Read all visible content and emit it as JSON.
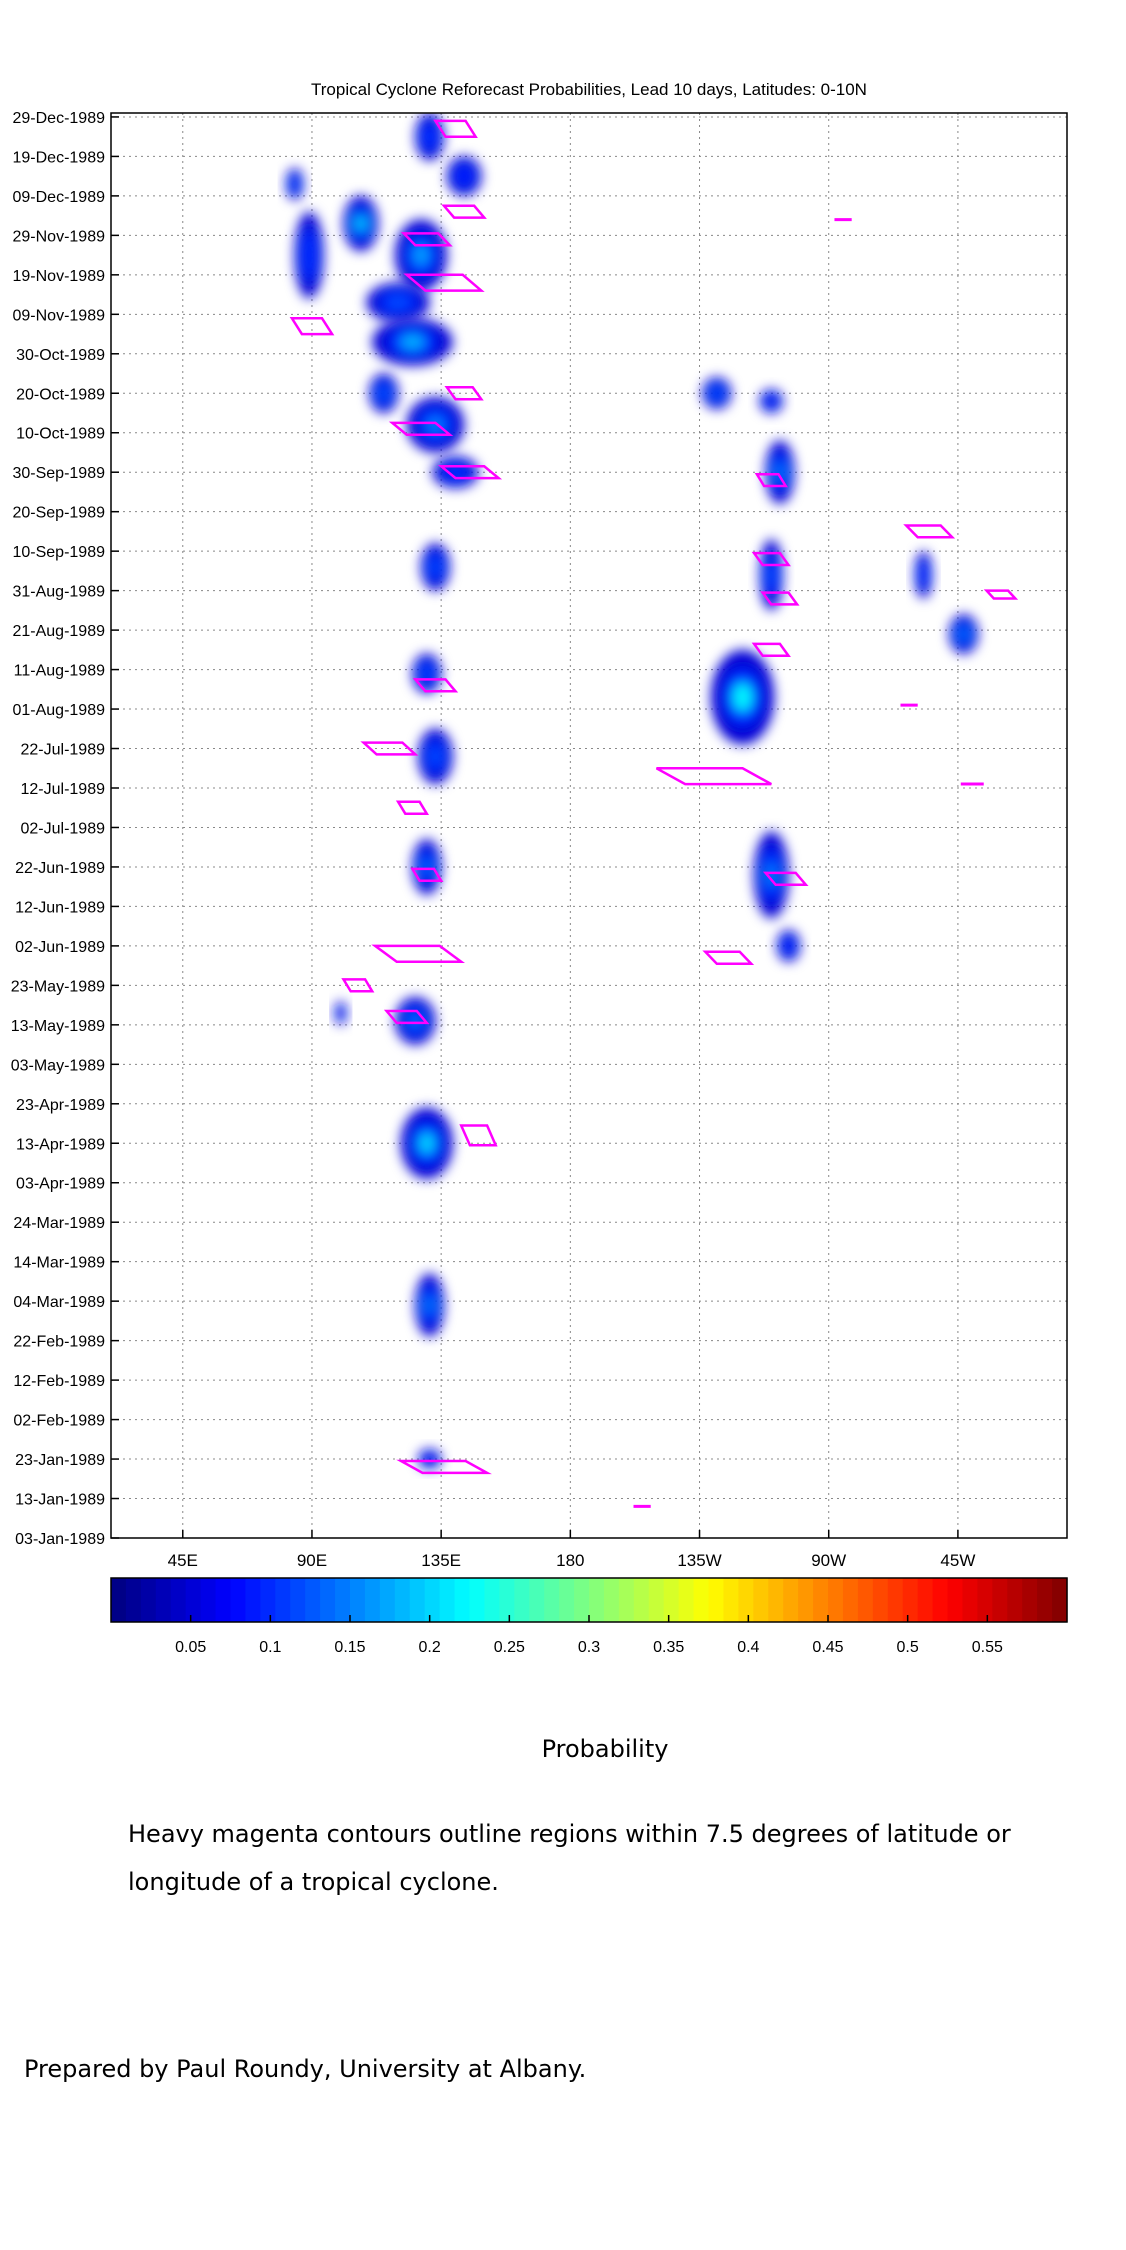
{
  "chart_data": {
    "type": "heatmap",
    "title": "Tropical Cyclone Reforecast Probabilities, Lead 10 days, Latitudes: 0-10N",
    "xlabel": "",
    "ylabel": "",
    "x_ticks": [
      {
        "lon": 45,
        "label": "45E"
      },
      {
        "lon": 90,
        "label": "90E"
      },
      {
        "lon": 135,
        "label": "135E"
      },
      {
        "lon": 180,
        "label": "180"
      },
      {
        "lon": 225,
        "label": "135W"
      },
      {
        "lon": 270,
        "label": "90W"
      },
      {
        "lon": 315,
        "label": "45W"
      }
    ],
    "xlim_deg_east": [
      20,
      353
    ],
    "y_ticks": [
      "29-Dec-1989",
      "19-Dec-1989",
      "09-Dec-1989",
      "29-Nov-1989",
      "19-Nov-1989",
      "09-Nov-1989",
      "30-Oct-1989",
      "20-Oct-1989",
      "10-Oct-1989",
      "30-Sep-1989",
      "20-Sep-1989",
      "10-Sep-1989",
      "31-Aug-1989",
      "21-Aug-1989",
      "11-Aug-1989",
      "01-Aug-1989",
      "22-Jul-1989",
      "12-Jul-1989",
      "02-Jul-1989",
      "22-Jun-1989",
      "12-Jun-1989",
      "02-Jun-1989",
      "23-May-1989",
      "13-May-1989",
      "03-May-1989",
      "23-Apr-1989",
      "13-Apr-1989",
      "03-Apr-1989",
      "24-Mar-1989",
      "14-Mar-1989",
      "04-Mar-1989",
      "22-Feb-1989",
      "12-Feb-1989",
      "02-Feb-1989",
      "23-Jan-1989",
      "13-Jan-1989",
      "03-Jan-1989"
    ],
    "ylim_dates": [
      "1989-01-03",
      "1989-12-30"
    ],
    "grid": true,
    "colorbar": {
      "label": "Probability",
      "range": [
        0,
        0.6
      ],
      "ticks": [
        0.05,
        0.1,
        0.15,
        0.2,
        0.25,
        0.3,
        0.35,
        0.4,
        0.45,
        0.5,
        0.55
      ],
      "tick_labels": [
        "0.05",
        "0.1",
        "0.15",
        "0.2",
        "0.25",
        "0.3",
        "0.35",
        "0.4",
        "0.45",
        "0.5",
        "0.55"
      ],
      "colormap": "jet"
    },
    "probability_blobs": [
      {
        "lon": 131,
        "date": "1989-12-24",
        "lon_w": 10,
        "days": 12,
        "p": 0.1
      },
      {
        "lon": 143,
        "date": "1989-12-14",
        "lon_w": 12,
        "days": 10,
        "p": 0.08
      },
      {
        "lon": 84,
        "date": "1989-12-12",
        "lon_w": 6,
        "days": 8,
        "p": 0.12
      },
      {
        "lon": 107,
        "date": "1989-12-02",
        "lon_w": 12,
        "days": 14,
        "p": 0.2
      },
      {
        "lon": 89,
        "date": "1989-11-24",
        "lon_w": 10,
        "days": 22,
        "p": 0.1
      },
      {
        "lon": 128,
        "date": "1989-11-24",
        "lon_w": 18,
        "days": 18,
        "p": 0.17
      },
      {
        "lon": 120,
        "date": "1989-11-12",
        "lon_w": 22,
        "days": 10,
        "p": 0.12
      },
      {
        "lon": 125,
        "date": "1989-11-02",
        "lon_w": 28,
        "days": 12,
        "p": 0.18
      },
      {
        "lon": 115,
        "date": "1989-10-20",
        "lon_w": 10,
        "days": 10,
        "p": 0.13
      },
      {
        "lon": 133,
        "date": "1989-10-12",
        "lon_w": 20,
        "days": 14,
        "p": 0.15
      },
      {
        "lon": 140,
        "date": "1989-09-30",
        "lon_w": 16,
        "days": 8,
        "p": 0.1
      },
      {
        "lon": 231,
        "date": "1989-10-20",
        "lon_w": 10,
        "days": 8,
        "p": 0.13
      },
      {
        "lon": 250,
        "date": "1989-10-18",
        "lon_w": 8,
        "days": 6,
        "p": 0.1
      },
      {
        "lon": 253,
        "date": "1989-09-30",
        "lon_w": 10,
        "days": 16,
        "p": 0.15
      },
      {
        "lon": 133,
        "date": "1989-09-06",
        "lon_w": 10,
        "days": 12,
        "p": 0.12
      },
      {
        "lon": 250,
        "date": "1989-09-04",
        "lon_w": 8,
        "days": 18,
        "p": 0.12
      },
      {
        "lon": 303,
        "date": "1989-09-04",
        "lon_w": 6,
        "days": 12,
        "p": 0.1
      },
      {
        "lon": 317,
        "date": "1989-08-20",
        "lon_w": 10,
        "days": 10,
        "p": 0.15
      },
      {
        "lon": 130,
        "date": "1989-08-10",
        "lon_w": 10,
        "days": 10,
        "p": 0.12
      },
      {
        "lon": 240,
        "date": "1989-08-04",
        "lon_w": 22,
        "days": 24,
        "p": 0.22
      },
      {
        "lon": 133,
        "date": "1989-07-20",
        "lon_w": 12,
        "days": 14,
        "p": 0.12
      },
      {
        "lon": 130,
        "date": "1989-06-22",
        "lon_w": 10,
        "days": 14,
        "p": 0.14
      },
      {
        "lon": 250,
        "date": "1989-06-20",
        "lon_w": 12,
        "days": 22,
        "p": 0.15
      },
      {
        "lon": 256,
        "date": "1989-06-02",
        "lon_w": 8,
        "days": 8,
        "p": 0.1
      },
      {
        "lon": 126,
        "date": "1989-05-14",
        "lon_w": 14,
        "days": 12,
        "p": 0.14
      },
      {
        "lon": 100,
        "date": "1989-05-16",
        "lon_w": 4,
        "days": 6,
        "p": 0.07
      },
      {
        "lon": 130,
        "date": "1989-04-13",
        "lon_w": 18,
        "days": 18,
        "p": 0.2
      },
      {
        "lon": 131,
        "date": "1989-03-03",
        "lon_w": 10,
        "days": 16,
        "p": 0.15
      },
      {
        "lon": 131,
        "date": "1989-01-23",
        "lon_w": 8,
        "days": 5,
        "p": 0.07
      }
    ],
    "cyclone_contours": [
      {
        "lon": 140,
        "date": "1989-12-26",
        "lon_w": 14,
        "days": 4
      },
      {
        "lon": 143,
        "date": "1989-12-05",
        "lon_w": 14,
        "days": 3
      },
      {
        "lon": 130,
        "date": "1989-11-28",
        "lon_w": 16,
        "days": 3
      },
      {
        "lon": 136,
        "date": "1989-11-17",
        "lon_w": 26,
        "days": 4
      },
      {
        "lon": 90,
        "date": "1989-11-06",
        "lon_w": 14,
        "days": 4
      },
      {
        "lon": 143,
        "date": "1989-10-20",
        "lon_w": 12,
        "days": 3
      },
      {
        "lon": 128,
        "date": "1989-10-11",
        "lon_w": 20,
        "days": 3
      },
      {
        "lon": 145,
        "date": "1989-09-30",
        "lon_w": 20,
        "days": 3
      },
      {
        "lon": 250,
        "date": "1989-09-28",
        "lon_w": 10,
        "days": 3
      },
      {
        "lon": 250,
        "date": "1989-09-08",
        "lon_w": 12,
        "days": 3
      },
      {
        "lon": 253,
        "date": "1989-08-29",
        "lon_w": 12,
        "days": 3
      },
      {
        "lon": 250,
        "date": "1989-08-16",
        "lon_w": 12,
        "days": 3
      },
      {
        "lon": 133,
        "date": "1989-08-07",
        "lon_w": 14,
        "days": 3
      },
      {
        "lon": 305,
        "date": "1989-09-15",
        "lon_w": 16,
        "days": 3
      },
      {
        "lon": 330,
        "date": "1989-08-30",
        "lon_w": 10,
        "days": 2
      },
      {
        "lon": 117,
        "date": "1989-07-22",
        "lon_w": 18,
        "days": 3
      },
      {
        "lon": 230,
        "date": "1989-07-15",
        "lon_w": 40,
        "days": 4
      },
      {
        "lon": 125,
        "date": "1989-07-07",
        "lon_w": 10,
        "days": 3
      },
      {
        "lon": 130,
        "date": "1989-06-20",
        "lon_w": 10,
        "days": 3
      },
      {
        "lon": 255,
        "date": "1989-06-19",
        "lon_w": 14,
        "days": 3
      },
      {
        "lon": 127,
        "date": "1989-05-31",
        "lon_w": 30,
        "days": 4
      },
      {
        "lon": 235,
        "date": "1989-05-30",
        "lon_w": 16,
        "days": 3
      },
      {
        "lon": 106,
        "date": "1989-05-23",
        "lon_w": 10,
        "days": 3
      },
      {
        "lon": 123,
        "date": "1989-05-15",
        "lon_w": 14,
        "days": 3
      },
      {
        "lon": 148,
        "date": "1989-04-15",
        "lon_w": 12,
        "days": 5
      },
      {
        "lon": 136,
        "date": "1989-01-21",
        "lon_w": 30,
        "days": 3
      },
      {
        "lon": 205,
        "date": "1989-01-11",
        "lon_w": 6,
        "days": 1
      },
      {
        "lon": 275,
        "date": "1989-12-03",
        "lon_w": 6,
        "days": 1
      },
      {
        "lon": 298,
        "date": "1989-08-02",
        "lon_w": 6,
        "days": 1
      },
      {
        "lon": 320,
        "date": "1989-07-13",
        "lon_w": 8,
        "days": 1
      }
    ]
  },
  "colorbar_label": "Probability",
  "note": "Heavy magenta contours outline regions within 7.5 degrees of latitude or longitude of a tropical cyclone.",
  "credit": "Prepared by Paul Roundy, University at Albany.",
  "colors": {
    "contour": "#ff00ff",
    "grid": "#888888",
    "axis": "#000000"
  }
}
